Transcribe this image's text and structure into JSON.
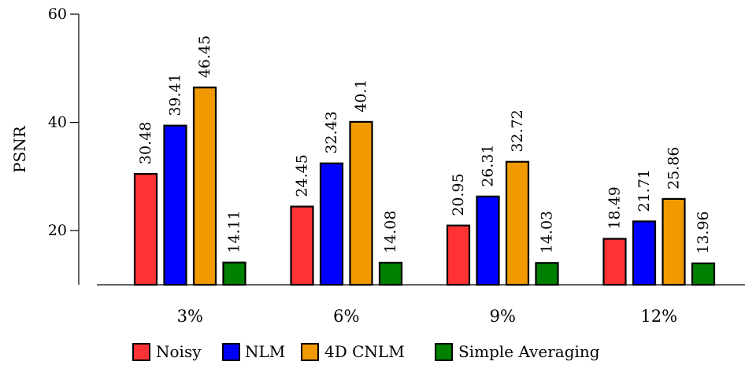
{
  "chart_data": {
    "type": "bar",
    "title": "",
    "xlabel": "",
    "ylabel": "PSNR",
    "ylim": [
      10,
      60
    ],
    "yticks": [
      20,
      40,
      60
    ],
    "categories": [
      "3%",
      "6%",
      "9%",
      "12%"
    ],
    "series": [
      {
        "name": "Noisy",
        "color": "#ff3333",
        "values": [
          30.48,
          24.45,
          20.95,
          18.49
        ],
        "labels": [
          "30.48",
          "24.45",
          "20.95",
          "18.49"
        ]
      },
      {
        "name": "NLM",
        "color": "#0000ff",
        "values": [
          39.41,
          32.43,
          26.31,
          21.71
        ],
        "labels": [
          "39.41",
          "32.43",
          "26.31",
          "21.71"
        ]
      },
      {
        "name": "4D CNLM",
        "color": "#f09a00",
        "values": [
          46.45,
          40.1,
          32.72,
          25.86
        ],
        "labels": [
          "46.45",
          "40.1",
          "32.72",
          "25.86"
        ]
      },
      {
        "name": "Simple Averaging",
        "color": "#008000",
        "values": [
          14.11,
          14.08,
          14.03,
          13.96
        ],
        "labels": [
          "14.11",
          "14.08",
          "14.03",
          "13.96"
        ]
      }
    ],
    "legend": {
      "placement": "bottom"
    },
    "grid": false
  }
}
